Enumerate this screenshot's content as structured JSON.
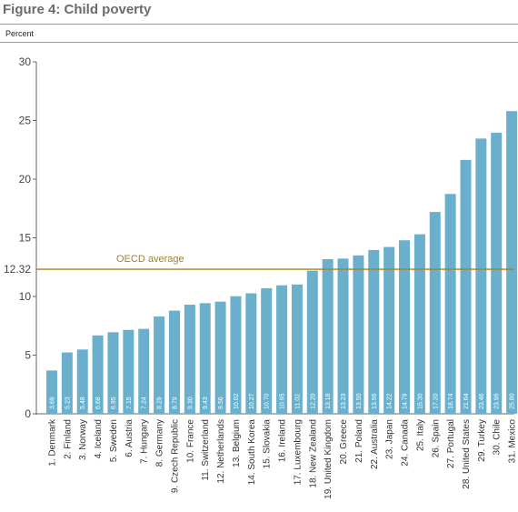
{
  "figure": {
    "title": "Figure 4: Child poverty",
    "unit": "Percent"
  },
  "colors": {
    "bar": "#6ab0cc",
    "average_line": "#a8821e",
    "average_text": "#a8821e",
    "axis": "#666666"
  },
  "chart_data": {
    "type": "bar",
    "title": "Figure 4: Child poverty",
    "ylabel": "Percent",
    "xlabel": "",
    "ylim": [
      0,
      30
    ],
    "yticks": [
      0,
      5,
      10,
      15,
      20,
      25,
      30
    ],
    "grid": false,
    "categories": [
      "1. Denmark",
      "2. Finland",
      "3. Norway",
      "4. Iceland",
      "5. Sweden",
      "6. Austria",
      "7. Hungary",
      "8. Germany",
      "9. Czech Republic",
      "10. France",
      "11. Switzerland",
      "12. Netherlands",
      "13. Belgium",
      "14. South Korea",
      "15. Slovakia",
      "16. Ireland",
      "17. Luxembourg",
      "18. New Zealand",
      "19. United Kingdom",
      "20. Greece",
      "21. Poland",
      "22. Australia",
      "23. Japan",
      "24. Canada",
      "25. Italy",
      "26. Spain",
      "27. Portugal",
      "28. United States",
      "29. Turkey",
      "30. Chile",
      "31. Mexico"
    ],
    "values": [
      3.69,
      5.23,
      5.48,
      6.68,
      6.95,
      7.15,
      7.24,
      8.29,
      8.79,
      9.3,
      9.43,
      9.56,
      10.02,
      10.27,
      10.7,
      10.95,
      11.02,
      12.2,
      13.18,
      13.23,
      13.5,
      13.96,
      14.22,
      14.79,
      15.3,
      17.2,
      18.74,
      21.64,
      23.46,
      23.96,
      25.8
    ],
    "value_labels": [
      "3.69",
      "5.23",
      "5.48",
      "6.68",
      "6.95",
      "7.15",
      "7.24",
      "8.29",
      "8.79",
      "9.30",
      "9.43",
      "9.56",
      "10.02",
      "10.27",
      "10.70",
      "10.95",
      "11.02",
      "12.20",
      "13.18",
      "13.23",
      "13.50",
      "13.96",
      "14.22",
      "14.79",
      "15.30",
      "17.20",
      "18.74",
      "21.64",
      "23.46",
      "23.96",
      "25.80"
    ],
    "reference_line": {
      "value": 12.32,
      "value_label": "12.32",
      "label": "OECD average"
    }
  }
}
